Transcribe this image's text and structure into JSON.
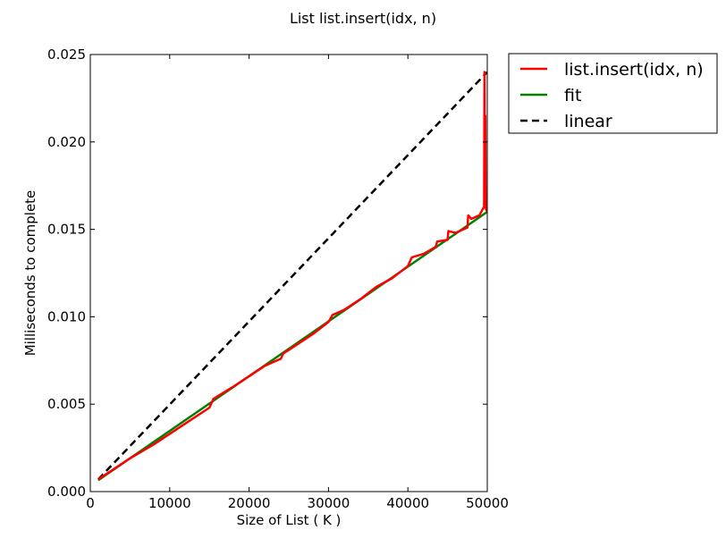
{
  "chart_data": {
    "type": "line",
    "title": "List list.insert(idx, n)",
    "xlabel": "Size of List ( K )",
    "ylabel": "Milliseconds to complete",
    "xlim": [
      0,
      50000
    ],
    "ylim": [
      0,
      0.025
    ],
    "xticks": [
      0,
      10000,
      20000,
      30000,
      40000,
      50000
    ],
    "xtick_labels": [
      "0",
      "10000",
      "20000",
      "30000",
      "40000",
      "50000"
    ],
    "yticks": [
      0,
      0.005,
      0.01,
      0.015,
      0.02,
      0.025
    ],
    "ytick_labels": [
      "0.000",
      "0.005",
      "0.010",
      "0.015",
      "0.020",
      "0.025"
    ],
    "grid": false,
    "legend_position": "outside-right-top",
    "series": [
      {
        "name": "list.insert(idx, n)",
        "color": "#ff0000",
        "style": "solid",
        "x": [
          1000,
          5000,
          8000,
          10000,
          12000,
          15000,
          15500,
          18000,
          20000,
          22000,
          24000,
          24300,
          25000,
          26000,
          28000,
          30000,
          30500,
          32000,
          34000,
          36000,
          38000,
          40000,
          40500,
          42000,
          43500,
          43700,
          45000,
          45100,
          46000,
          47500,
          47600,
          48000,
          49000,
          49600,
          49650,
          49700,
          49750,
          49800,
          50000
        ],
        "y": [
          0.0007,
          0.0019,
          0.0027,
          0.0033,
          0.0039,
          0.0048,
          0.0053,
          0.006,
          0.0066,
          0.0072,
          0.0076,
          0.0079,
          0.0081,
          0.0084,
          0.009,
          0.0097,
          0.0101,
          0.0104,
          0.011,
          0.0117,
          0.0122,
          0.0129,
          0.0134,
          0.0136,
          0.014,
          0.0143,
          0.0144,
          0.0149,
          0.0148,
          0.0151,
          0.0158,
          0.0156,
          0.0158,
          0.0163,
          0.024,
          0.0165,
          0.0215,
          0.0162,
          0.016
        ]
      },
      {
        "name": "fit",
        "color": "#008000",
        "style": "solid",
        "x": [
          1000,
          50000
        ],
        "y": [
          0.00065,
          0.016
        ]
      },
      {
        "name": "linear",
        "color": "#000000",
        "style": "dashed",
        "x": [
          1000,
          50000
        ],
        "y": [
          0.0007,
          0.024
        ]
      }
    ]
  }
}
